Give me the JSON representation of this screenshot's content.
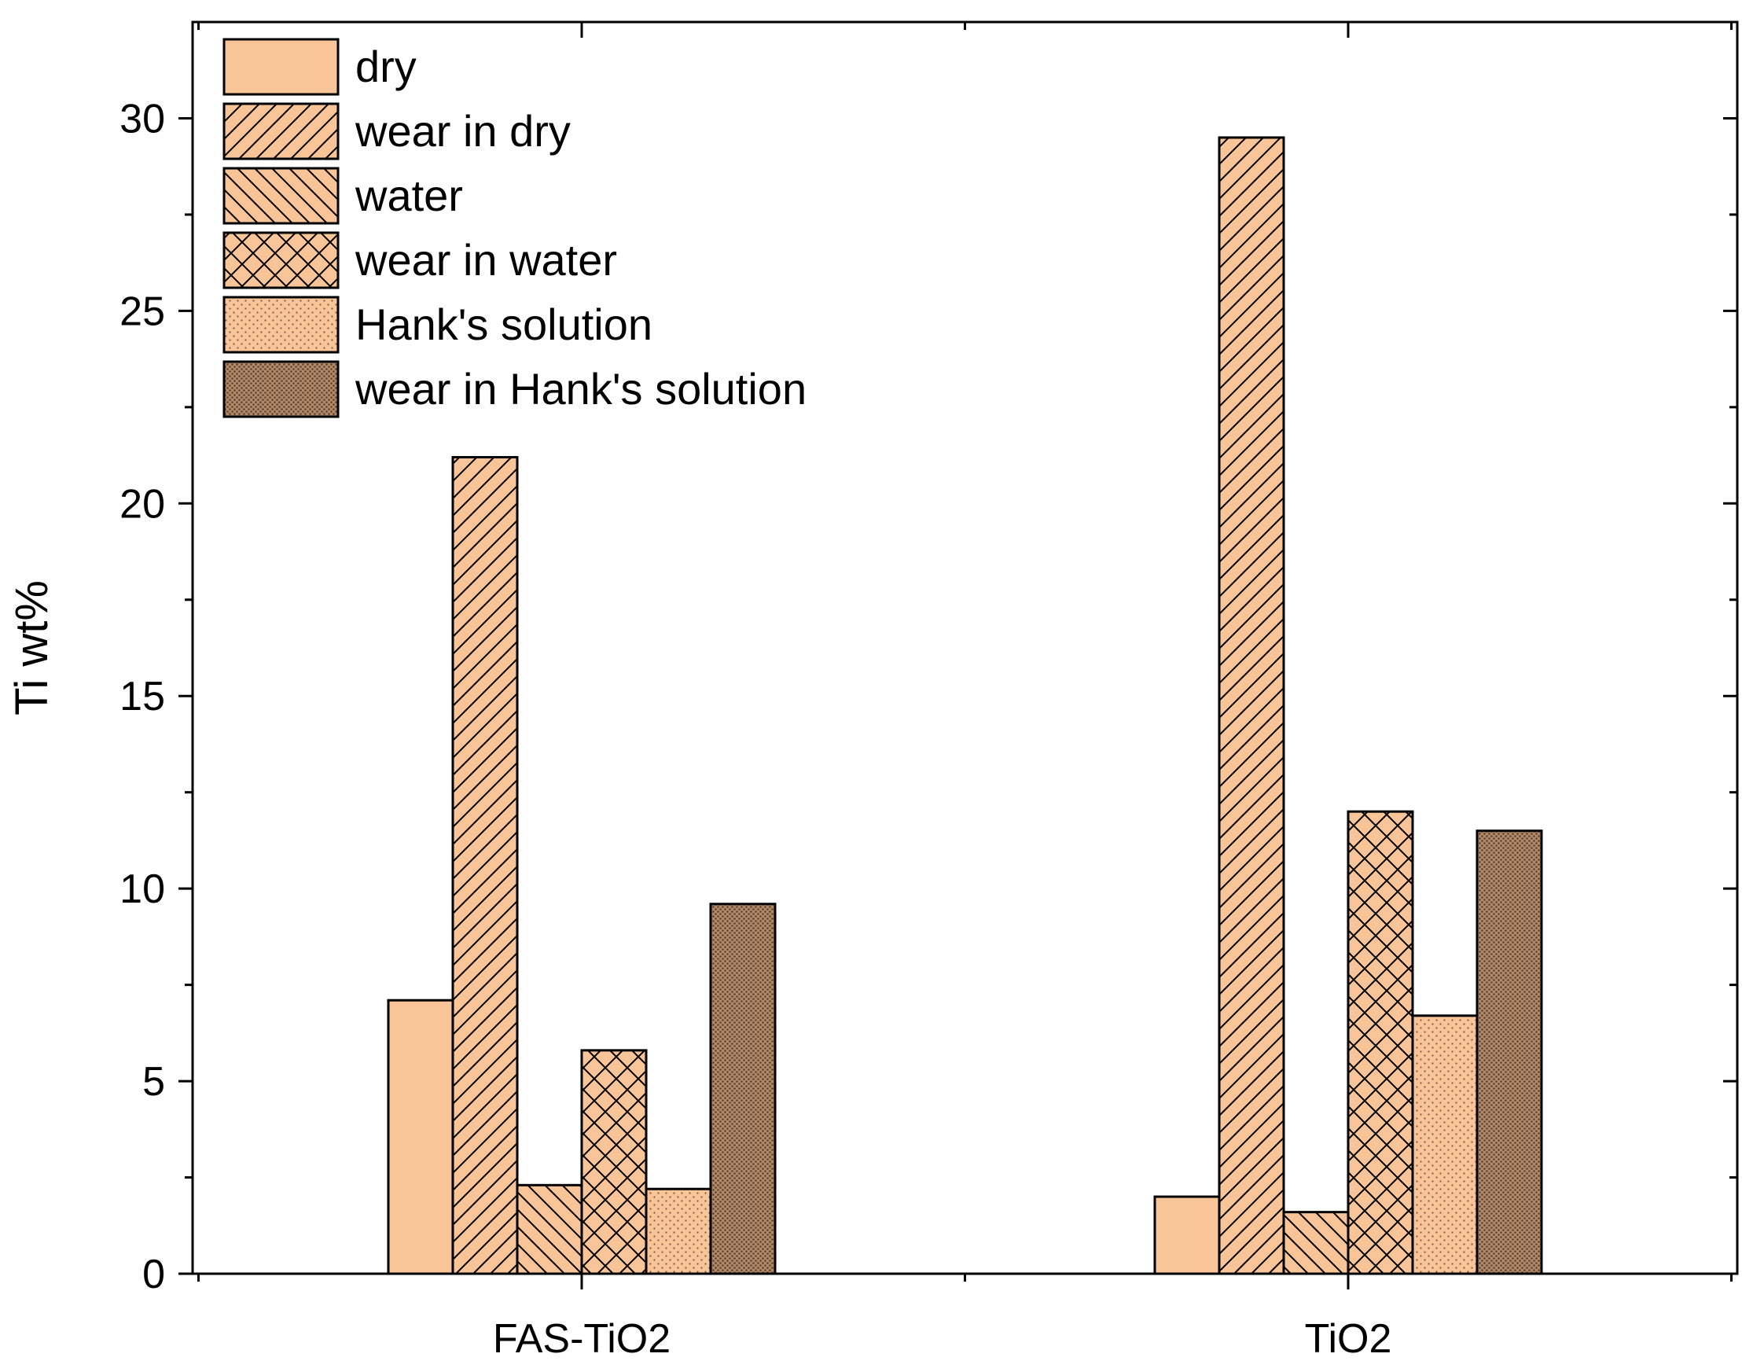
{
  "chart_data": {
    "type": "bar",
    "title": "",
    "xlabel": "",
    "ylabel": "Ti wt%",
    "ylim": [
      0,
      32.5
    ],
    "yticks": [
      0,
      5,
      10,
      15,
      20,
      25,
      30
    ],
    "ytick_labels": [
      "0",
      "5",
      "10",
      "15",
      "20",
      "25",
      "30"
    ],
    "categories": [
      "FAS-TiO2",
      "TiO2"
    ],
    "legend_position": "top-left",
    "series": [
      {
        "name": "dry",
        "pattern": "solid",
        "color": "#F9C497",
        "values": [
          7.1,
          2.0
        ]
      },
      {
        "name": "wear in dry",
        "pattern": "diagonal-forward",
        "color": "#F9C497",
        "values": [
          21.2,
          29.5
        ]
      },
      {
        "name": "water",
        "pattern": "diagonal-back",
        "color": "#F9C497",
        "values": [
          2.3,
          1.6
        ]
      },
      {
        "name": "wear in water",
        "pattern": "crosshatch",
        "color": "#F9C497",
        "values": [
          5.8,
          12.0
        ]
      },
      {
        "name": "Hank's solution",
        "pattern": "dots",
        "color": "#F9C497",
        "values": [
          2.2,
          6.7
        ]
      },
      {
        "name": "wear in Hank's solution",
        "pattern": "dense-dots",
        "color": "#A07A5C",
        "values": [
          9.6,
          11.5
        ]
      }
    ]
  }
}
